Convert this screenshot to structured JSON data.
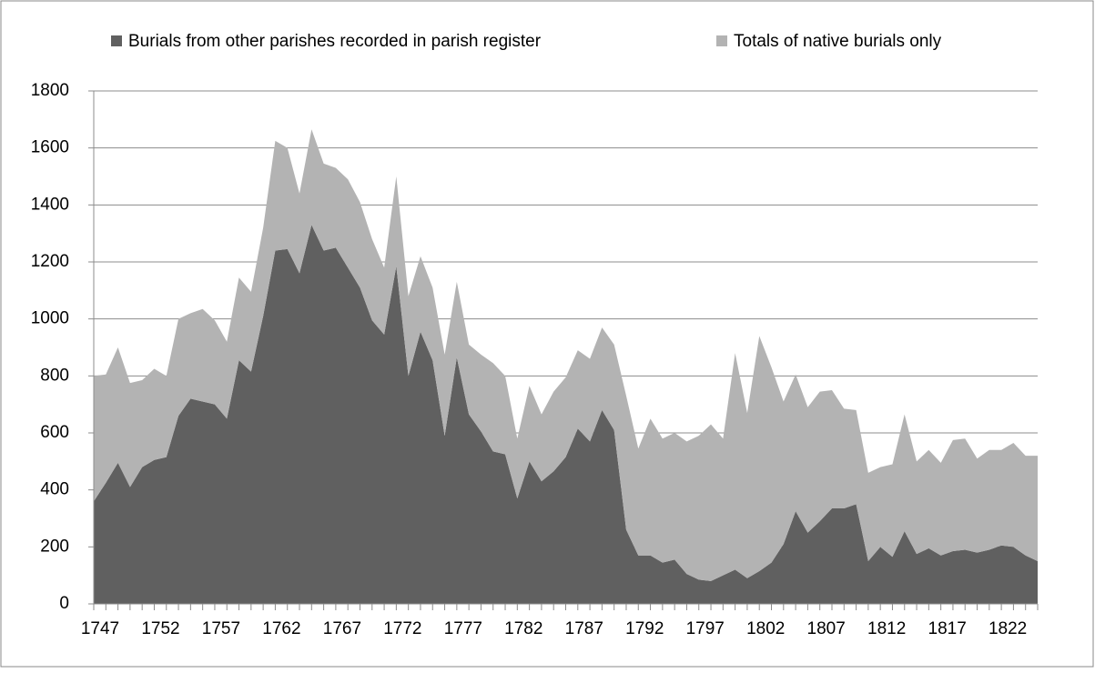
{
  "chart_data": {
    "type": "stacked_area",
    "categories": [
      "1747",
      null,
      null,
      null,
      null,
      "1752",
      null,
      null,
      null,
      null,
      "1757",
      null,
      null,
      null,
      null,
      "1762",
      null,
      null,
      null,
      null,
      "1767",
      null,
      null,
      null,
      null,
      "1772",
      null,
      null,
      null,
      null,
      "1777",
      null,
      null,
      null,
      null,
      "1782",
      null,
      null,
      null,
      null,
      "1787",
      null,
      null,
      null,
      null,
      "1792",
      null,
      null,
      null,
      null,
      "1797",
      null,
      null,
      null,
      null,
      "1802",
      null,
      null,
      null,
      null,
      "1807",
      null,
      null,
      null,
      null,
      "1812",
      null,
      null,
      null,
      null,
      "1817",
      null,
      null,
      null,
      null,
      "1822",
      null,
      null,
      null
    ],
    "series": [
      {
        "name": "Burials from other parishes recorded in parish register",
        "color": "#606060",
        "values": [
          360,
          425,
          495,
          410,
          480,
          505,
          515,
          660,
          720,
          710,
          700,
          650,
          855,
          815,
          1010,
          1240,
          1245,
          1160,
          1330,
          1240,
          1250,
          1180,
          1110,
          995,
          945,
          1185,
          800,
          955,
          855,
          590,
          865,
          665,
          605,
          535,
          525,
          370,
          500,
          430,
          465,
          515,
          615,
          570,
          680,
          610,
          260,
          170,
          170,
          145,
          155,
          105,
          85,
          80,
          100,
          120,
          90,
          115,
          145,
          210,
          325,
          250,
          290,
          335,
          335,
          350,
          150,
          200,
          165,
          255,
          175,
          195,
          170,
          185,
          190,
          180,
          190,
          205,
          200,
          170,
          150
        ]
      },
      {
        "name": "Totals of native burials only",
        "color": "#b3b3b3",
        "values": [
          440,
          380,
          405,
          365,
          305,
          320,
          285,
          340,
          300,
          325,
          295,
          270,
          290,
          280,
          310,
          385,
          355,
          280,
          335,
          305,
          280,
          310,
          300,
          285,
          235,
          315,
          280,
          265,
          255,
          285,
          265,
          245,
          270,
          310,
          275,
          210,
          265,
          235,
          280,
          280,
          275,
          290,
          290,
          300,
          470,
          375,
          480,
          435,
          445,
          465,
          505,
          550,
          480,
          760,
          580,
          825,
          685,
          500,
          480,
          440,
          455,
          415,
          350,
          330,
          310,
          280,
          325,
          410,
          325,
          345,
          325,
          390,
          390,
          330,
          350,
          335,
          365,
          350,
          370
        ]
      }
    ],
    "ylim": [
      0,
      1800
    ],
    "yticks": [
      0,
      200,
      400,
      600,
      800,
      1000,
      1200,
      1400,
      1600,
      1800
    ],
    "grid": true,
    "legend": "top"
  }
}
